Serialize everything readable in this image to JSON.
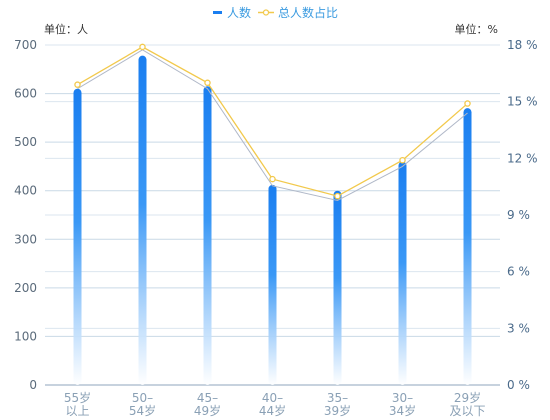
{
  "chart_data": {
    "type": "bar",
    "categories": [
      [
        "55岁",
        "以上"
      ],
      [
        "50–",
        "54岁"
      ],
      [
        "45–",
        "49岁"
      ],
      [
        "40–",
        "44岁"
      ],
      [
        "35–",
        "39岁"
      ],
      [
        "30–",
        "34岁"
      ],
      [
        "29岁",
        "及以下"
      ]
    ],
    "series": [
      {
        "name": "人数",
        "type": "bar",
        "axis": "left",
        "color": "#1a7ef0",
        "values": [
          610,
          678,
          615,
          412,
          400,
          460,
          570
        ]
      },
      {
        "name": "总人数占比",
        "type": "line",
        "axis": "right",
        "color": "#f2c94c",
        "values": [
          15.9,
          17.9,
          16.0,
          10.9,
          10.0,
          11.9,
          14.9
        ]
      },
      {
        "name": "",
        "type": "line",
        "axis": "left",
        "color": "#b0b8c8",
        "values": [
          610,
          690,
          610,
          410,
          380,
          450,
          560
        ]
      }
    ],
    "left_axis": {
      "unit_label": "单位：人",
      "min": 0,
      "max": 700,
      "step": 100
    },
    "right_axis": {
      "unit_label": "单位：%",
      "min": 0,
      "max": 18,
      "step": 3,
      "suffix": " %"
    },
    "legend": {
      "position": "top-center"
    },
    "grid": true
  }
}
